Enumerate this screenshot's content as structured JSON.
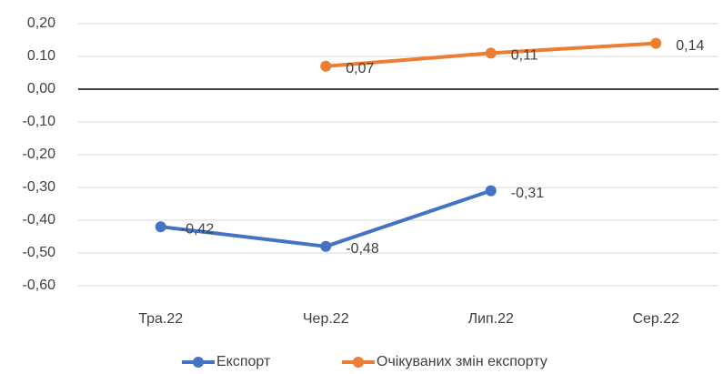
{
  "chart_data": {
    "type": "line",
    "categories": [
      "Тра.22",
      "Чер.22",
      "Лип.22",
      "Сер.22"
    ],
    "series": [
      {
        "name": "Експорт",
        "color": "#4472c4",
        "values": [
          -0.42,
          -0.48,
          -0.31,
          null
        ],
        "value_labels": [
          "-0,42",
          "-0,48",
          "-0,31",
          null
        ]
      },
      {
        "name": "Очікуваних змін експорту",
        "color": "#ed7d31",
        "values": [
          null,
          0.07,
          0.11,
          0.14
        ],
        "value_labels": [
          null,
          "0,07",
          "0,11",
          "0,14"
        ]
      }
    ],
    "ylim": [
      -0.6,
      0.2
    ],
    "yticks": [
      {
        "value": 0.2,
        "label": "0,20"
      },
      {
        "value": 0.1,
        "label": "0.10"
      },
      {
        "value": 0,
        "label": "0,00"
      },
      {
        "value": -0.1,
        "label": "-0,10"
      },
      {
        "value": -0.2,
        "label": "-0,20"
      },
      {
        "value": -0.3,
        "label": "-0,30"
      },
      {
        "value": -0.4,
        "label": "-0,40"
      },
      {
        "value": -0.5,
        "label": "-0,50"
      },
      {
        "value": -0.6,
        "label": "-0,60"
      }
    ],
    "grid": true,
    "legend": "bottom"
  }
}
